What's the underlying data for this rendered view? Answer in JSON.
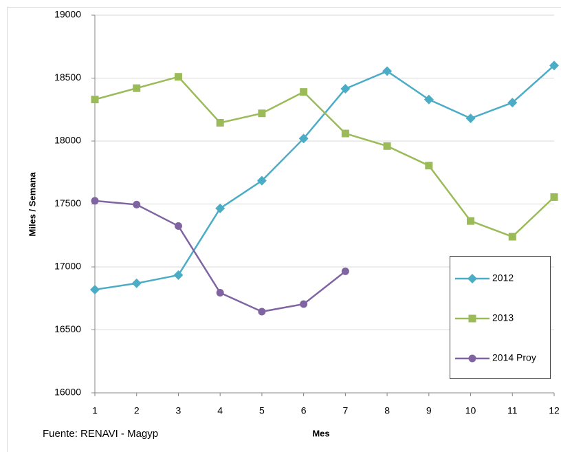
{
  "chart_data": {
    "type": "line",
    "x": [
      1,
      2,
      3,
      4,
      5,
      6,
      7,
      8,
      9,
      10,
      11,
      12
    ],
    "xlabel": "Mes",
    "ylabel": "Miles / Semana",
    "source": "Fuente: RENAVI - Magyp",
    "xlim": [
      1,
      12
    ],
    "xticks": [
      1,
      2,
      3,
      4,
      5,
      6,
      7,
      8,
      9,
      10,
      11,
      12
    ],
    "ylim": [
      16000,
      19000
    ],
    "yticks": [
      16000,
      16500,
      17000,
      17500,
      18000,
      18500,
      19000
    ],
    "grid": true,
    "legend": "lower right",
    "series": [
      {
        "name": "2012",
        "color": "#4bacc6",
        "marker": "diamond",
        "values": [
          16820,
          16870,
          16935,
          17465,
          17685,
          18020,
          18415,
          18555,
          18330,
          18180,
          18305,
          18600
        ]
      },
      {
        "name": "2013",
        "color": "#9bbb59",
        "marker": "square",
        "values": [
          18330,
          18420,
          18510,
          18145,
          18220,
          18390,
          18060,
          17960,
          17805,
          17365,
          17240,
          17555
        ]
      },
      {
        "name": "2014 Proy",
        "color": "#8064a2",
        "marker": "circle",
        "values": [
          17525,
          17495,
          17325,
          16795,
          16645,
          16705,
          16965,
          null,
          null,
          null,
          null,
          null
        ]
      }
    ]
  }
}
